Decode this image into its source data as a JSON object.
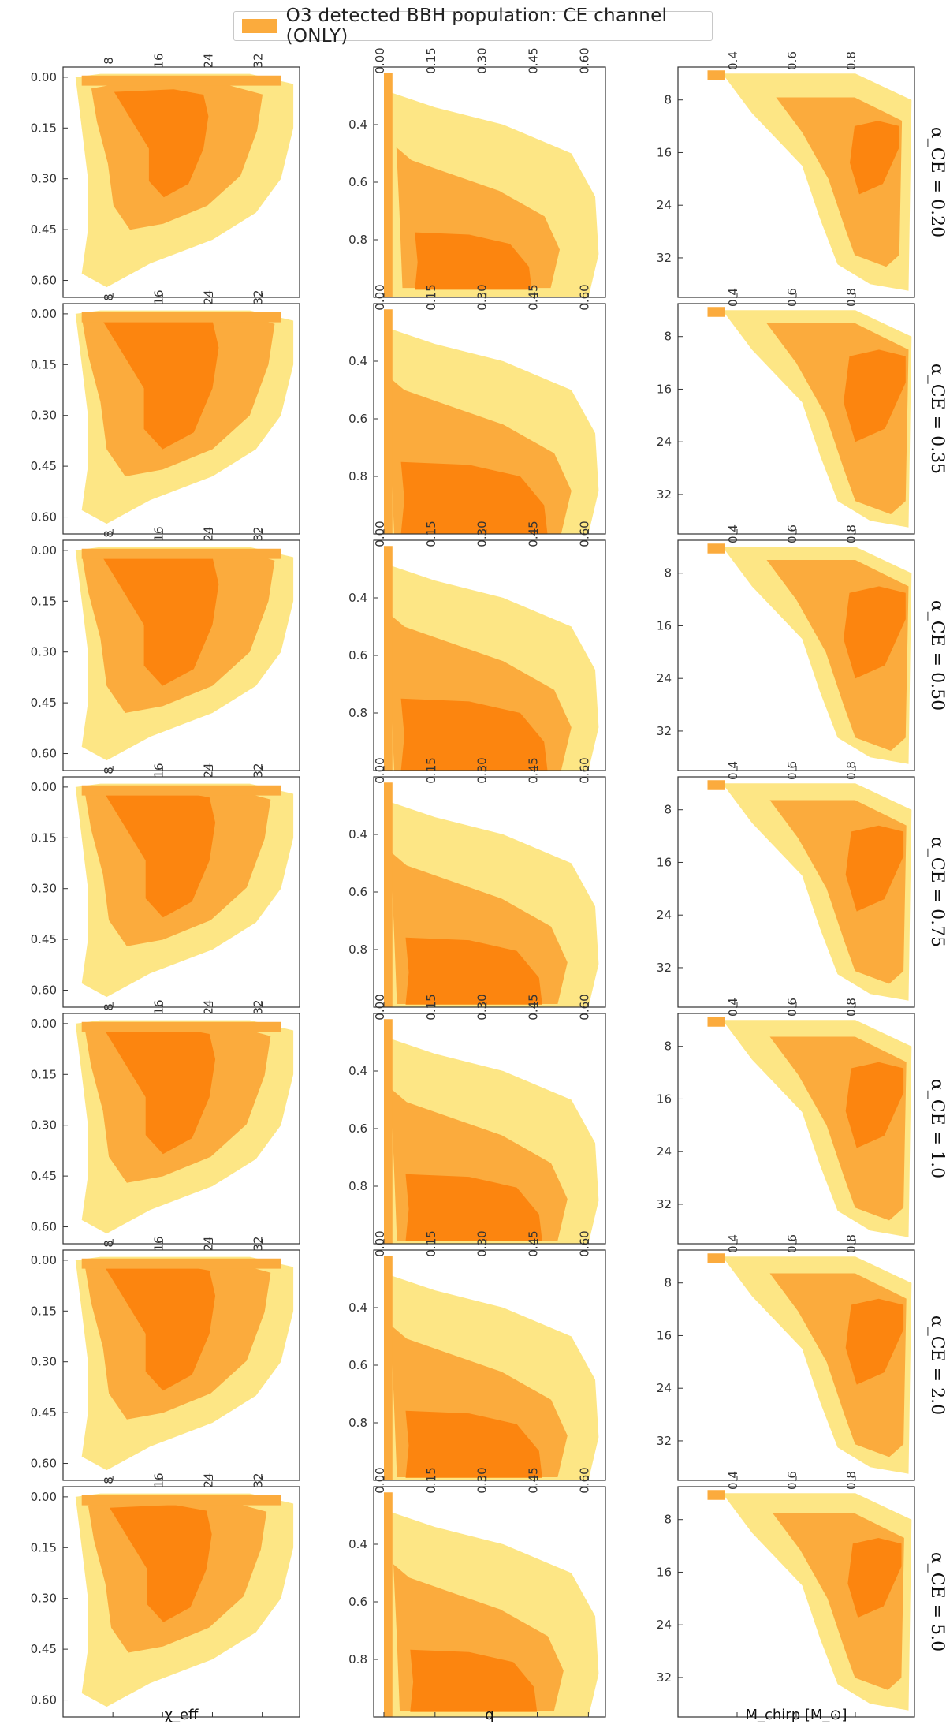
{
  "legend": {
    "label": "O3 detected BBH population: CE channel (ONLY)",
    "swatch_color": "#fbab3d"
  },
  "colors": {
    "level_low": "#fde685",
    "level_mid": "#fbab3d",
    "level_high": "#fc850f",
    "axis": "#333333"
  },
  "chart_data": {
    "type": "contour",
    "alpha_labels": [
      "α_CE = 0.20",
      "α_CE = 0.35",
      "α_CE = 0.50",
      "α_CE = 0.75",
      "α_CE = 1.0",
      "α_CE = 2.0",
      "α_CE = 5.0"
    ],
    "alpha_values": [
      0.2,
      0.35,
      0.5,
      0.75,
      1.0,
      2.0,
      5.0
    ],
    "panels": [
      {
        "x_quantity": "χ_eff",
        "y_quantity": "M_chirp",
        "xlabel": "χ_eff",
        "ylabel": "M_chirp [M_⊙]",
        "xlim": [
          -0.03,
          0.65
        ],
        "ylim": [
          0,
          38
        ],
        "xticks": [
          "0.00",
          "0.15",
          "0.30",
          "0.45",
          "0.60"
        ],
        "yticks": [
          "8",
          "16",
          "24",
          "32"
        ]
      },
      {
        "x_quantity": "q",
        "y_quantity": "χ_eff",
        "xlabel": "q",
        "ylabel": "χ_eff",
        "xlim": [
          0.2,
          1.0
        ],
        "ylim": [
          -0.03,
          0.65
        ],
        "xticks": [
          "0.4",
          "0.6",
          "0.8"
        ],
        "yticks": [
          "0.00",
          "0.15",
          "0.30",
          "0.45",
          "0.60"
        ]
      },
      {
        "x_quantity": "M_chirp",
        "y_quantity": "q",
        "xlabel": "M_chirp [M_⊙]",
        "ylabel": "q",
        "xlim": [
          3,
          38
        ],
        "ylim": [
          0.2,
          1.0
        ],
        "xticks": [
          "8",
          "16",
          "24",
          "32"
        ],
        "yticks": [
          "0.4",
          "0.6",
          "0.8"
        ]
      }
    ]
  }
}
